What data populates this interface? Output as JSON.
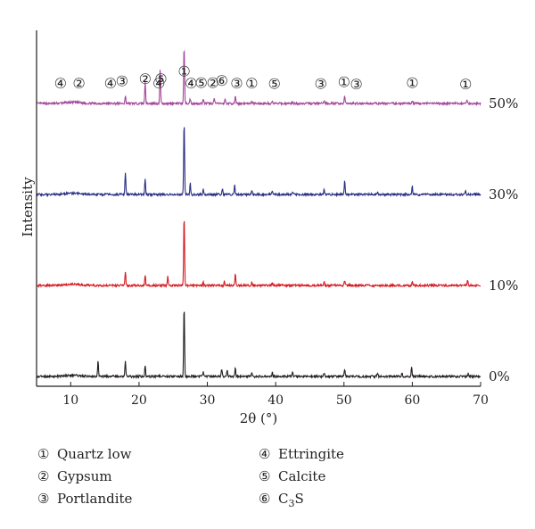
{
  "chart_data": {
    "type": "line",
    "xlabel": "2θ (°)",
    "ylabel": "Intensity",
    "xlim": [
      5,
      70
    ],
    "xticks": [
      10,
      20,
      30,
      40,
      50,
      60,
      70
    ],
    "grid": false,
    "series": [
      {
        "name": "50%",
        "color": "#a3479b",
        "peaks": [
          [
            18.0,
            0.1
          ],
          [
            20.9,
            0.3
          ],
          [
            23.1,
            0.45
          ],
          [
            26.6,
            0.75
          ],
          [
            27.5,
            0.06
          ],
          [
            29.4,
            0.06
          ],
          [
            31.0,
            0.07
          ],
          [
            32.6,
            0.06
          ],
          [
            34.1,
            0.09
          ],
          [
            36.5,
            0.03
          ],
          [
            39.5,
            0.03
          ],
          [
            42.5,
            0.02
          ],
          [
            47.1,
            0.04
          ],
          [
            50.1,
            0.1
          ],
          [
            60.0,
            0.04
          ],
          [
            68.0,
            0.04
          ]
        ]
      },
      {
        "name": "30%",
        "color": "#2b2e83",
        "peaks": [
          [
            18.0,
            0.28
          ],
          [
            20.9,
            0.2
          ],
          [
            26.6,
            0.96
          ],
          [
            27.5,
            0.16
          ],
          [
            29.4,
            0.07
          ],
          [
            32.2,
            0.08
          ],
          [
            34.0,
            0.12
          ],
          [
            36.5,
            0.05
          ],
          [
            39.5,
            0.04
          ],
          [
            42.5,
            0.03
          ],
          [
            47.1,
            0.06
          ],
          [
            50.1,
            0.18
          ],
          [
            54.9,
            0.03
          ],
          [
            60.0,
            0.11
          ],
          [
            67.8,
            0.06
          ]
        ]
      },
      {
        "name": "10%",
        "color": "#d7191f",
        "peaks": [
          [
            18.0,
            0.17
          ],
          [
            20.9,
            0.14
          ],
          [
            24.2,
            0.12
          ],
          [
            26.6,
            0.92
          ],
          [
            29.4,
            0.05
          ],
          [
            32.5,
            0.05
          ],
          [
            34.1,
            0.16
          ],
          [
            36.5,
            0.04
          ],
          [
            39.5,
            0.03
          ],
          [
            47.1,
            0.04
          ],
          [
            50.1,
            0.07
          ],
          [
            60.0,
            0.06
          ],
          [
            68.1,
            0.07
          ]
        ]
      },
      {
        "name": "0%",
        "color": "#231f20",
        "peaks": [
          [
            14.0,
            0.22
          ],
          [
            18.0,
            0.2
          ],
          [
            20.9,
            0.14
          ],
          [
            26.6,
            0.92
          ],
          [
            29.4,
            0.06
          ],
          [
            32.1,
            0.1
          ],
          [
            32.9,
            0.09
          ],
          [
            34.1,
            0.13
          ],
          [
            36.5,
            0.05
          ],
          [
            39.5,
            0.05
          ],
          [
            42.5,
            0.06
          ],
          [
            47.1,
            0.05
          ],
          [
            50.1,
            0.09
          ],
          [
            54.9,
            0.04
          ],
          [
            58.5,
            0.06
          ],
          [
            59.9,
            0.12
          ],
          [
            68.2,
            0.04
          ]
        ]
      }
    ],
    "annotations": [
      {
        "label": "④",
        "x": 8.5,
        "row": 2
      },
      {
        "label": "②",
        "x": 11.2,
        "row": 2
      },
      {
        "label": "④",
        "x": 15.8,
        "row": 2
      },
      {
        "label": "③",
        "x": 17.5,
        "row": 1.3
      },
      {
        "label": "②",
        "x": 20.9,
        "row": 0.6
      },
      {
        "label": "⑤",
        "x": 23.2,
        "row": 0.6
      },
      {
        "label": "④",
        "x": 22.9,
        "row": 2
      },
      {
        "label": "①",
        "x": 26.6,
        "row": -1.8
      },
      {
        "label": "④",
        "x": 27.6,
        "row": 2
      },
      {
        "label": "⑤",
        "x": 29.1,
        "row": 1.8
      },
      {
        "label": "②",
        "x": 30.8,
        "row": 1.8
      },
      {
        "label": "⑥",
        "x": 32.1,
        "row": 1.1
      },
      {
        "label": "③",
        "x": 34.3,
        "row": 2
      },
      {
        "label": "①",
        "x": 36.5,
        "row": 2
      },
      {
        "label": "⑤",
        "x": 39.8,
        "row": 2.1
      },
      {
        "label": "③",
        "x": 46.6,
        "row": 2.1
      },
      {
        "label": "①",
        "x": 50.0,
        "row": 1.5
      },
      {
        "label": "③",
        "x": 51.8,
        "row": 2.3
      },
      {
        "label": "①",
        "x": 60.0,
        "row": 1.8
      },
      {
        "label": "①",
        "x": 67.8,
        "row": 2.3
      }
    ]
  },
  "legend": [
    {
      "num": "①",
      "label": "Quartz low"
    },
    {
      "num": "④",
      "label": "Ettringite"
    },
    {
      "num": "②",
      "label": "Gypsum"
    },
    {
      "num": "⑤",
      "label": "Calcite"
    },
    {
      "num": "③",
      "label": "Portlandite"
    },
    {
      "num": "⑥",
      "label": "C",
      "sub": "3",
      "after": "S"
    }
  ]
}
